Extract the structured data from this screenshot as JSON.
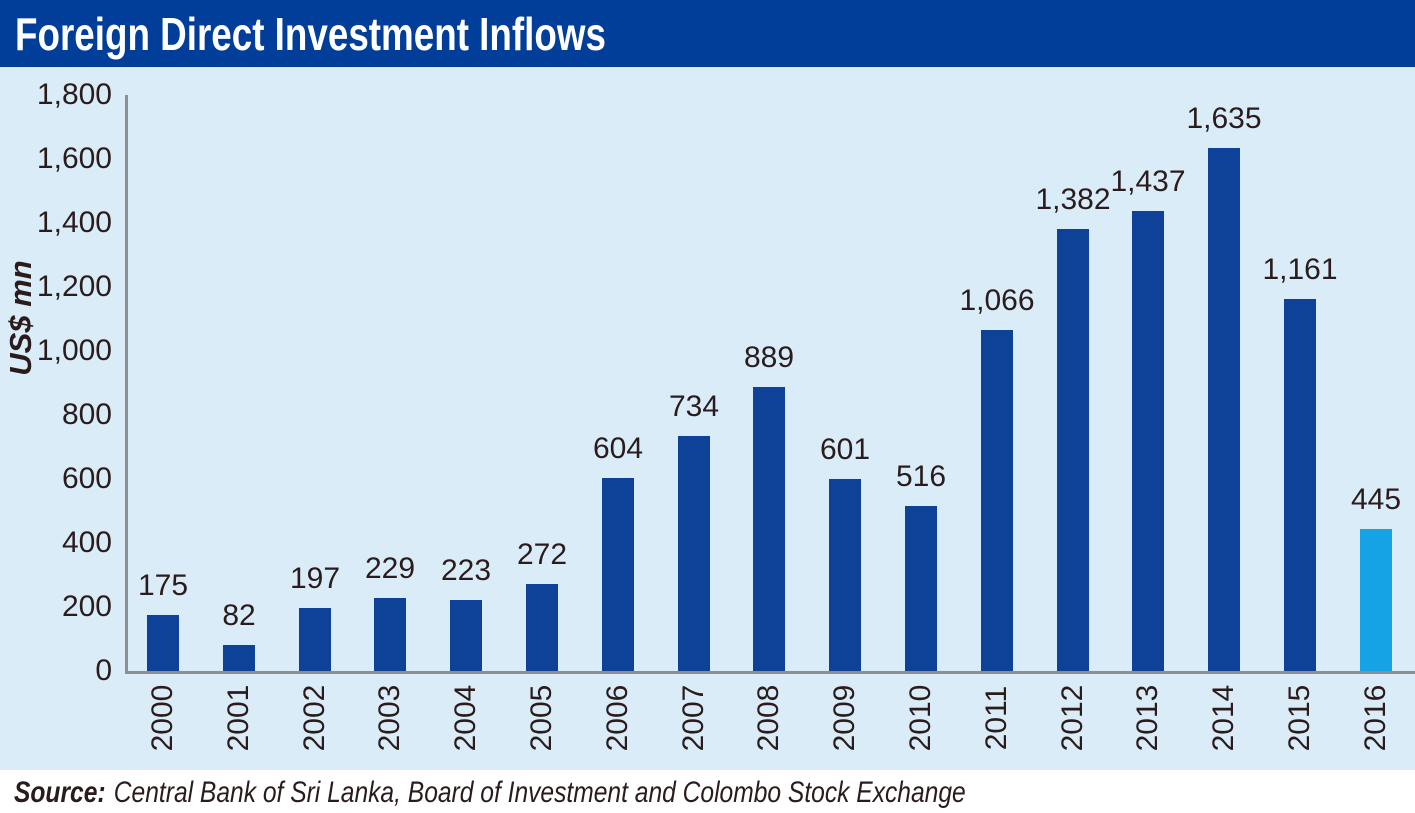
{
  "chart_data": {
    "type": "bar",
    "title": "Foreign Direct Investment Inflows",
    "ylabel": "US$ mn",
    "xlabel": "",
    "categories": [
      "2000",
      "2001",
      "2002",
      "2003",
      "2004",
      "2005",
      "2006",
      "2007",
      "2008",
      "2009",
      "2010",
      "2011",
      "2012",
      "2013",
      "2014",
      "2015",
      "2016"
    ],
    "values": [
      175,
      82,
      197,
      229,
      223,
      272,
      604,
      734,
      889,
      601,
      516,
      1066,
      1382,
      1437,
      1635,
      1161,
      445
    ],
    "value_labels": [
      "175",
      "82",
      "197",
      "229",
      "223",
      "272",
      "604",
      "734",
      "889",
      "601",
      "516",
      "1,066",
      "1,382",
      "1,437",
      "1,635",
      "1,161",
      "445"
    ],
    "ylim": [
      0,
      1800
    ],
    "ytick_values": [
      0,
      200,
      400,
      600,
      800,
      1000,
      1200,
      1400,
      1600,
      1800
    ],
    "ytick_labels": [
      "0",
      "200",
      "400",
      "600",
      "800",
      "1,000",
      "1,200",
      "1,400",
      "1,600",
      "1,800"
    ],
    "grid": false,
    "legend": null,
    "highlight_index": 16,
    "colors": {
      "header": "#003e99",
      "chart_background": "#daecf8",
      "bar": "#0e4298",
      "highlight_bar": "#15a3e6",
      "axis": "#8f8f93",
      "text": "#2a1c1c"
    }
  },
  "source": {
    "label": "Source:",
    "text": "Central Bank of Sri Lanka, Board of Investment and Colombo Stock Exchange"
  }
}
